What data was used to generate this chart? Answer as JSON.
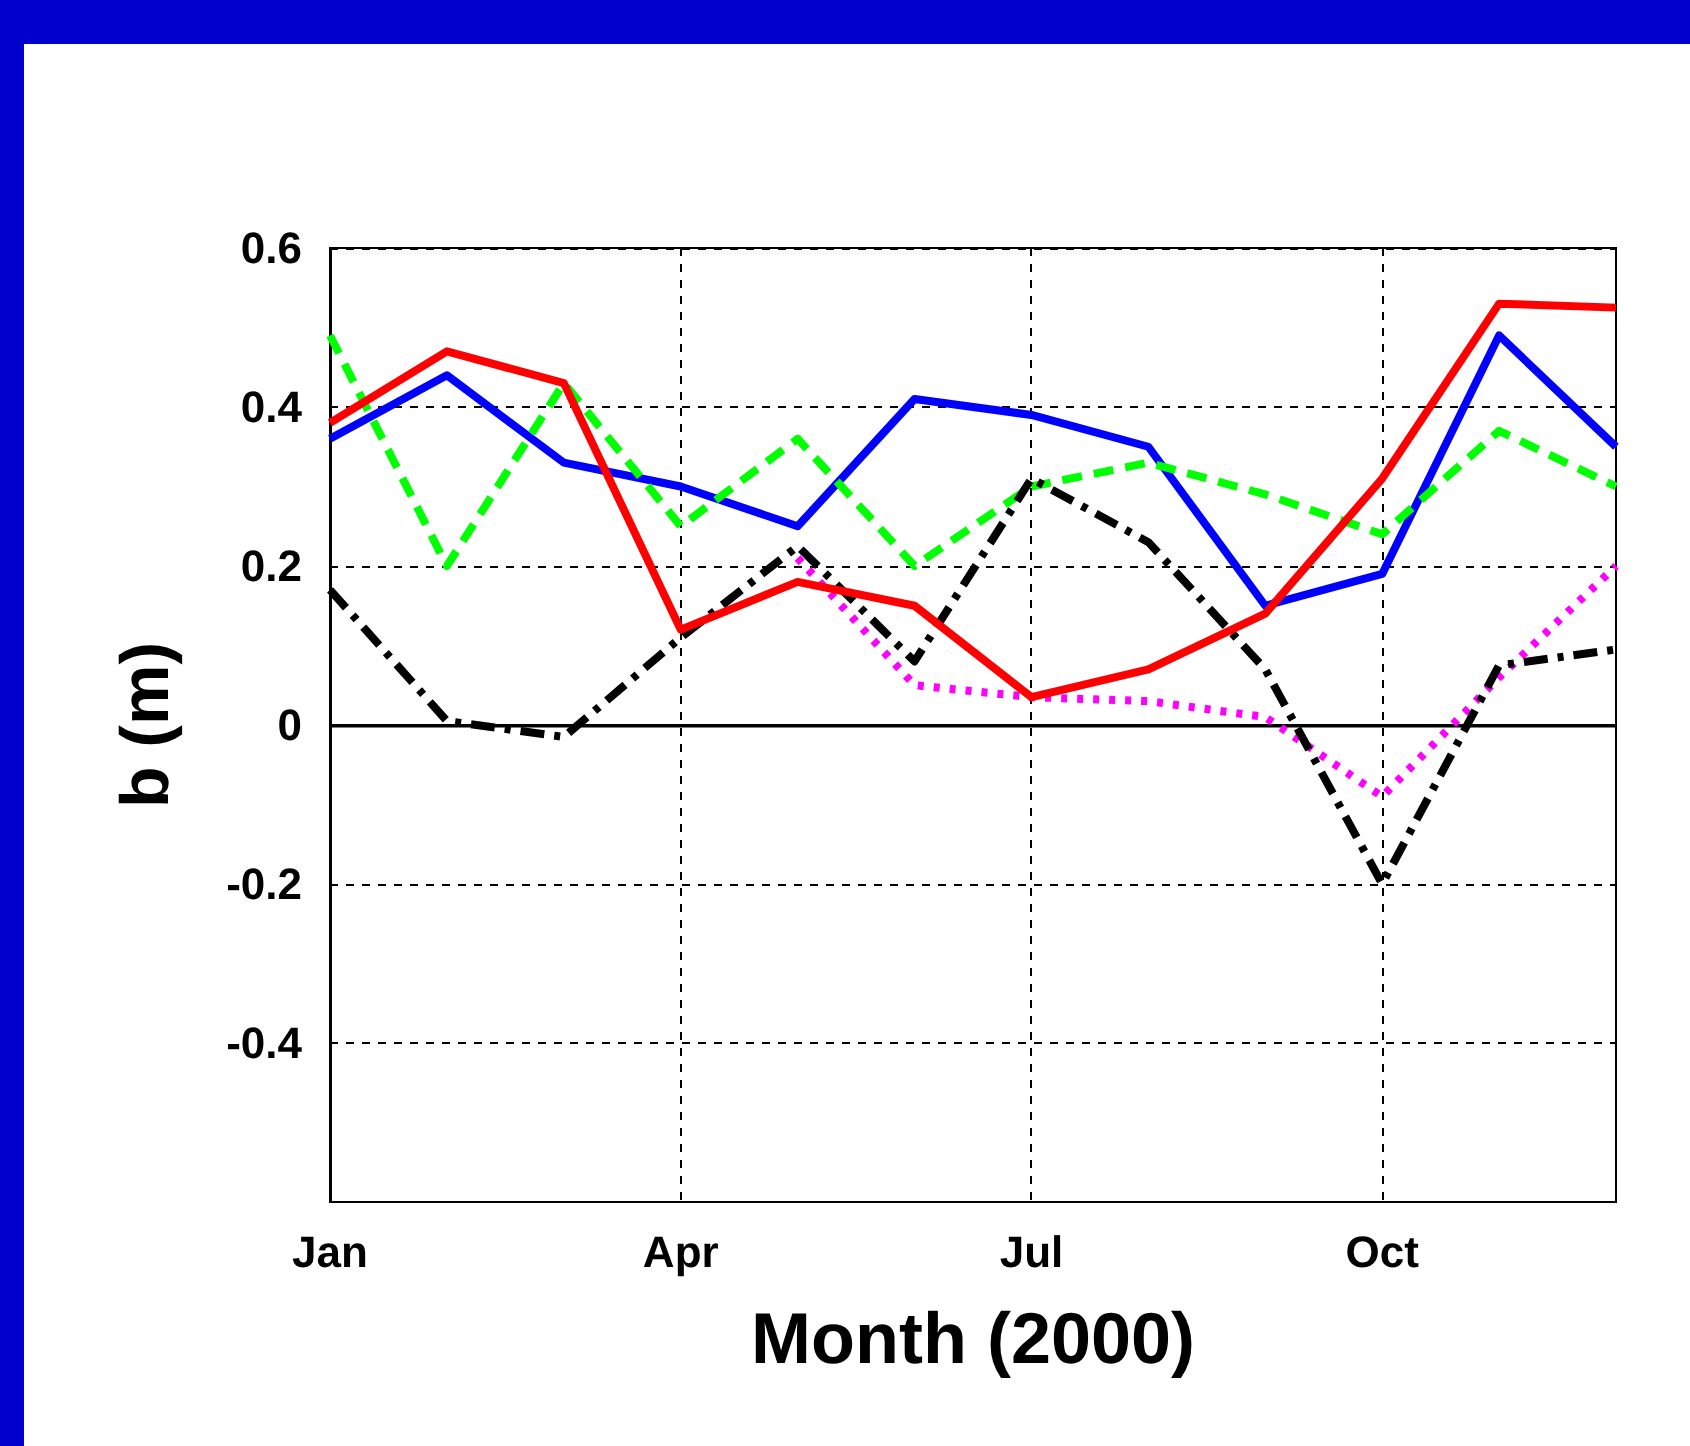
{
  "chart_data": {
    "type": "line",
    "xlabel": "Month (2000)",
    "ylabel": "b (m)",
    "categories": [
      "Jan",
      null,
      null,
      "Apr",
      null,
      null,
      "Jul",
      null,
      null,
      "Oct",
      null,
      null
    ],
    "series": [
      {
        "color": "#0000ff",
        "line_style": "solid",
        "values": [
          0.36,
          0.44,
          0.33,
          0.3,
          0.25,
          0.41,
          0.39,
          0.35,
          0.15,
          0.19,
          0.49,
          0.35
        ]
      },
      {
        "color": "#00ff00",
        "line_style": "dashed",
        "values": [
          0.49,
          0.2,
          0.43,
          0.25,
          0.36,
          0.2,
          0.3,
          0.33,
          0.29,
          0.24,
          0.37,
          0.3
        ]
      },
      {
        "color": "#ff00ff",
        "line_style": "dotted",
        "values": [
          null,
          null,
          null,
          null,
          0.21,
          0.05,
          0.035,
          0.03,
          0.01,
          -0.09,
          0.06,
          0.2
        ]
      },
      {
        "color": "#000000",
        "line_style": "dashdot",
        "values": [
          0.17,
          0.005,
          -0.015,
          0.11,
          0.225,
          0.08,
          0.31,
          0.23,
          0.07,
          -0.2,
          0.075,
          0.095
        ]
      },
      {
        "color": "#ff0000",
        "line_style": "solid",
        "values": [
          0.38,
          0.47,
          0.43,
          0.12,
          0.18,
          0.15,
          0.035,
          0.07,
          0.14,
          0.31,
          0.53,
          0.525
        ]
      }
    ],
    "ylim": [
      -0.6,
      0.6
    ],
    "yticks": [
      -0.4,
      -0.2,
      0,
      0.2,
      0.4,
      0.6
    ],
    "ref_lines": [
      {
        "axis": "y",
        "value": 0,
        "color": "#000000",
        "line_style": "solid"
      }
    ],
    "grid": true,
    "marker": "none"
  }
}
